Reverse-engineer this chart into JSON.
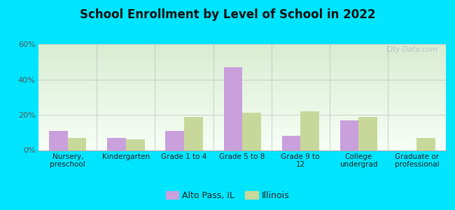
{
  "title": "School Enrollment by Level of School in 2022",
  "categories": [
    "Nursery,\npreschool",
    "Kindergarten",
    "Grade 1 to 4",
    "Grade 5 to 8",
    "Grade 9 to\n12",
    "College\nundergrad",
    "Graduate or\nprofessional"
  ],
  "alto_pass": [
    11,
    7,
    11,
    47,
    8,
    17,
    0
  ],
  "illinois": [
    7,
    6,
    19,
    21,
    22,
    19,
    7
  ],
  "alto_pass_color": "#c9a0dc",
  "illinois_color": "#c8d89a",
  "background_outer": "#00e5ff",
  "ylim": [
    0,
    60
  ],
  "yticks": [
    0,
    20,
    40,
    60
  ],
  "ytick_labels": [
    "0%",
    "20%",
    "40%",
    "60%"
  ],
  "legend_labels": [
    "Alto Pass, IL",
    "Illinois"
  ],
  "watermark": "City-Data.com",
  "bar_width": 0.32
}
